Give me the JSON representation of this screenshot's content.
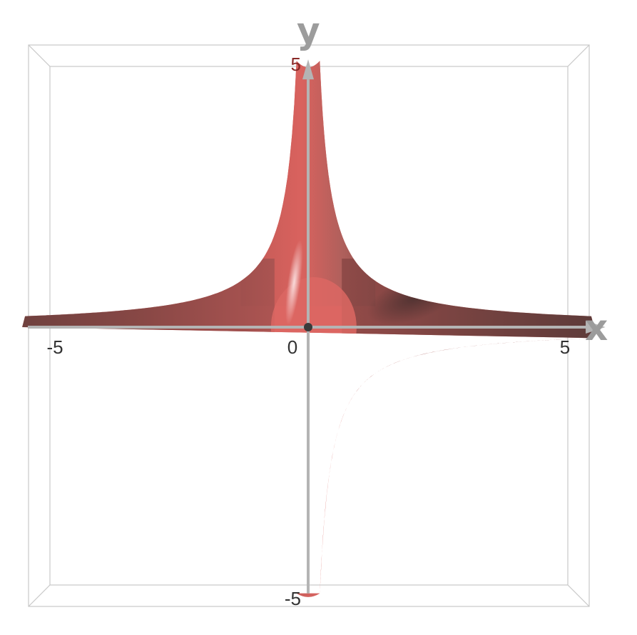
{
  "chart_data": {
    "type": "surface-3d",
    "view": "top-down",
    "axes": {
      "x": {
        "label": "x",
        "range": [
          -5,
          5
        ],
        "ticks": [
          {
            "value": -5,
            "label": "-5"
          },
          {
            "value": 0,
            "label": "0"
          },
          {
            "value": 5,
            "label": "5"
          }
        ]
      },
      "y": {
        "label": "y",
        "range": [
          -5,
          5
        ],
        "ticks": [
          {
            "value": 5,
            "label": "5"
          },
          {
            "value": -5,
            "label": "-5"
          }
        ]
      }
    },
    "surface": {
      "shape": "four-armed hyperbolic star",
      "boundary_relation": "|x|·|y| = 1.05",
      "color": "#d9625e",
      "shadow_color": "#5a3a38",
      "highlight_color": "#f6c4c4"
    },
    "bounding_box": true,
    "grid": false,
    "legend": "none"
  },
  "colors": {
    "axis": "#b4b4b4",
    "box": "#c8c8c8",
    "tick_text_on_surface": "#8a2a28",
    "tick_text": "#333333"
  }
}
